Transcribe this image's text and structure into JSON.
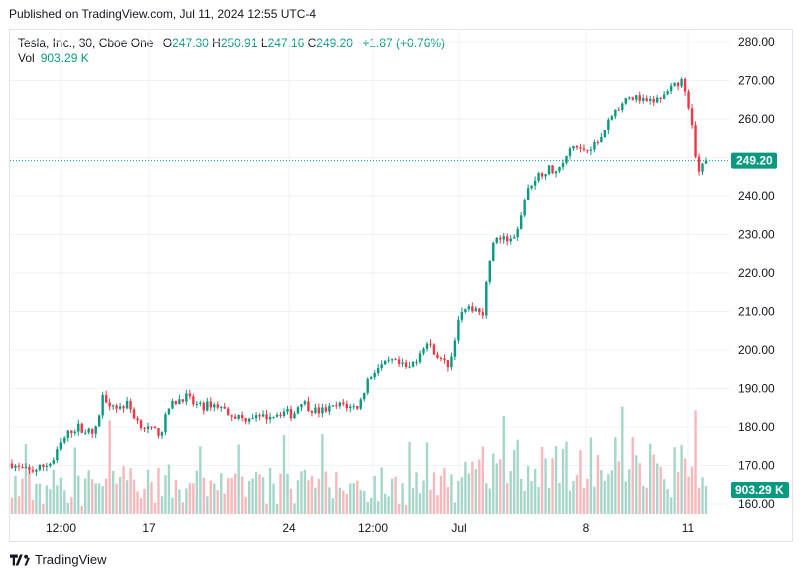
{
  "header": {
    "published": "Published on TradingView.com, Jul 11, 2024 12:55 UTC-4"
  },
  "legend": {
    "symbol": "Tesla, Inc., 30, Cboe One",
    "open_label": "O",
    "open": "247.30",
    "high_label": "H",
    "high": "250.91",
    "low_label": "L",
    "low": "247.16",
    "close_label": "C",
    "close": "249.20",
    "change": "+1.87 (+0.76%)",
    "vol_label": "Vol",
    "vol_value": "903.29 K"
  },
  "price_badge": "249.20",
  "vol_badge": "903.29 K",
  "footer": {
    "brand": "TradingView"
  },
  "colors": {
    "up": "#089981",
    "down": "#f23645",
    "vol_up": "#a5d6c9",
    "vol_down": "#f7b7bb",
    "grid": "#f0f3fa",
    "last": "#089981"
  },
  "chart_data": {
    "type": "candlestick",
    "y_ticks": [
      "280.00",
      "270.00",
      "260.00",
      "250.00",
      "240.00",
      "230.00",
      "220.00",
      "210.00",
      "200.00",
      "190.00",
      "180.00",
      "170.00",
      "160.00"
    ],
    "x_ticks": [
      "12:00",
      "17",
      "24",
      "12:00",
      "Jul",
      "8",
      "11"
    ],
    "ylim": [
      158,
      283
    ],
    "last_price": 249.2,
    "price_path": [
      [
        0,
        170.5
      ],
      [
        1,
        169
      ],
      [
        2,
        168.5
      ],
      [
        3,
        169
      ],
      [
        4,
        170
      ],
      [
        5,
        171
      ],
      [
        6,
        176
      ],
      [
        7,
        179
      ],
      [
        8,
        180
      ],
      [
        9,
        179
      ],
      [
        10,
        178
      ],
      [
        11,
        188
      ],
      [
        12,
        186
      ],
      [
        13,
        185
      ],
      [
        14,
        186
      ],
      [
        15,
        182
      ],
      [
        16,
        180
      ],
      [
        17,
        179
      ],
      [
        18,
        178.5
      ],
      [
        19,
        185
      ],
      [
        20,
        187
      ],
      [
        21,
        188
      ],
      [
        22,
        186
      ],
      [
        23,
        185
      ],
      [
        24,
        186
      ],
      [
        25,
        185.5
      ],
      [
        26,
        184
      ],
      [
        27,
        183
      ],
      [
        28,
        182
      ],
      [
        29,
        183
      ],
      [
        30,
        182
      ],
      [
        31,
        183
      ],
      [
        32,
        183.5
      ],
      [
        33,
        184
      ],
      [
        34,
        183
      ],
      [
        35,
        187
      ],
      [
        36,
        185
      ],
      [
        37,
        184
      ],
      [
        38,
        184.5
      ],
      [
        39,
        185
      ],
      [
        40,
        186
      ],
      [
        41,
        185
      ],
      [
        42,
        185.5
      ],
      [
        43,
        192
      ],
      [
        44,
        195
      ],
      [
        45,
        196
      ],
      [
        46,
        197
      ],
      [
        47,
        196
      ],
      [
        48,
        195
      ],
      [
        49,
        198
      ],
      [
        50,
        202
      ],
      [
        51,
        200
      ],
      [
        52,
        197
      ],
      [
        53,
        196
      ],
      [
        54,
        208
      ],
      [
        55,
        210
      ],
      [
        56,
        211
      ],
      [
        57,
        210
      ],
      [
        58,
        227
      ],
      [
        59,
        229
      ],
      [
        60,
        228
      ],
      [
        61,
        229
      ],
      [
        62,
        239
      ],
      [
        63,
        244
      ],
      [
        64,
        246
      ],
      [
        65,
        247
      ],
      [
        66,
        246
      ],
      [
        67,
        250
      ],
      [
        68,
        253
      ],
      [
        69,
        252
      ],
      [
        70,
        253
      ],
      [
        71,
        254
      ],
      [
        72,
        259
      ],
      [
        73,
        262
      ],
      [
        74,
        264
      ],
      [
        75,
        266
      ],
      [
        76,
        265
      ],
      [
        77,
        264
      ],
      [
        78,
        265
      ],
      [
        79,
        266
      ],
      [
        80,
        268
      ],
      [
        81,
        270
      ],
      [
        82,
        263
      ],
      [
        83,
        245
      ],
      [
        84,
        249.2
      ]
    ],
    "volume_bars": 140
  }
}
